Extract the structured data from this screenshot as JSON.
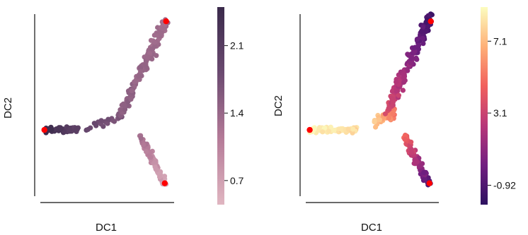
{
  "chart_data": [
    {
      "type": "scatter",
      "xlabel": "DC1",
      "ylabel": "DC2",
      "axes_ticks": false,
      "colorbar": {
        "ticks": [
          0.7,
          1.4,
          2.1
        ],
        "tick_labels": [
          "0.7",
          "1.4",
          "2.1"
        ],
        "range": [
          0.45,
          2.5
        ],
        "colors": [
          "#e0b6c1",
          "#b57b98",
          "#6b4a70",
          "#3a2a4b"
        ]
      },
      "highlight_color": "#ff0000",
      "highlight_points": [
        {
          "x": 0.03,
          "y": 0.37
        },
        {
          "x": 0.94,
          "y": 0.94
        },
        {
          "x": 0.93,
          "y": 0.09
        }
      ],
      "branches": [
        {
          "name": "left",
          "n": 70,
          "x0": 0.03,
          "y0": 0.37,
          "x1": 0.28,
          "y1": 0.37,
          "spread": 0.015,
          "v0": 2.45,
          "v1": 2.0
        },
        {
          "name": "middle",
          "n": 25,
          "x0": 0.35,
          "y0": 0.38,
          "x1": 0.62,
          "y1": 0.45,
          "spread": 0.02,
          "v0": 1.9,
          "v1": 1.6
        },
        {
          "name": "upper",
          "n": 160,
          "x0": 0.62,
          "y0": 0.48,
          "x1": 0.94,
          "y1": 0.94,
          "spread": 0.035,
          "v0": 1.5,
          "v1": 1.3
        },
        {
          "name": "lower",
          "n": 90,
          "x0": 0.74,
          "y0": 0.34,
          "x1": 0.93,
          "y1": 0.09,
          "spread": 0.025,
          "v0": 1.3,
          "v1": 0.6
        }
      ]
    },
    {
      "type": "scatter",
      "xlabel": "DC1",
      "ylabel": "DC2",
      "axes_ticks": false,
      "colorbar": {
        "ticks": [
          -0.92,
          3.1,
          7.1
        ],
        "tick_labels": [
          "-0.92",
          "3.1",
          "7.1"
        ],
        "range": [
          -2.0,
          9.0
        ],
        "colors": [
          "#2d1160",
          "#721f81",
          "#b73779",
          "#f1605d",
          "#feb078",
          "#fcfdbf"
        ]
      },
      "highlight_color": "#ff0000",
      "highlight_points": [
        {
          "x": 0.03,
          "y": 0.37
        },
        {
          "x": 0.94,
          "y": 0.94
        },
        {
          "x": 0.93,
          "y": 0.09
        }
      ],
      "branches": [
        {
          "name": "left",
          "n": 70,
          "x0": 0.03,
          "y0": 0.37,
          "x1": 0.38,
          "y1": 0.37,
          "spread": 0.015,
          "v0": 8.8,
          "v1": 8.0
        },
        {
          "name": "middle",
          "n": 40,
          "x0": 0.5,
          "y0": 0.4,
          "x1": 0.68,
          "y1": 0.47,
          "spread": 0.03,
          "v0": 8.0,
          "v1": 5.0
        },
        {
          "name": "upper",
          "n": 160,
          "x0": 0.62,
          "y0": 0.48,
          "x1": 0.94,
          "y1": 0.97,
          "spread": 0.035,
          "v0": 3.5,
          "v1": -1.5
        },
        {
          "name": "lower",
          "n": 90,
          "x0": 0.74,
          "y0": 0.34,
          "x1": 0.93,
          "y1": 0.08,
          "spread": 0.025,
          "v0": 5.0,
          "v1": -1.0
        }
      ]
    }
  ]
}
